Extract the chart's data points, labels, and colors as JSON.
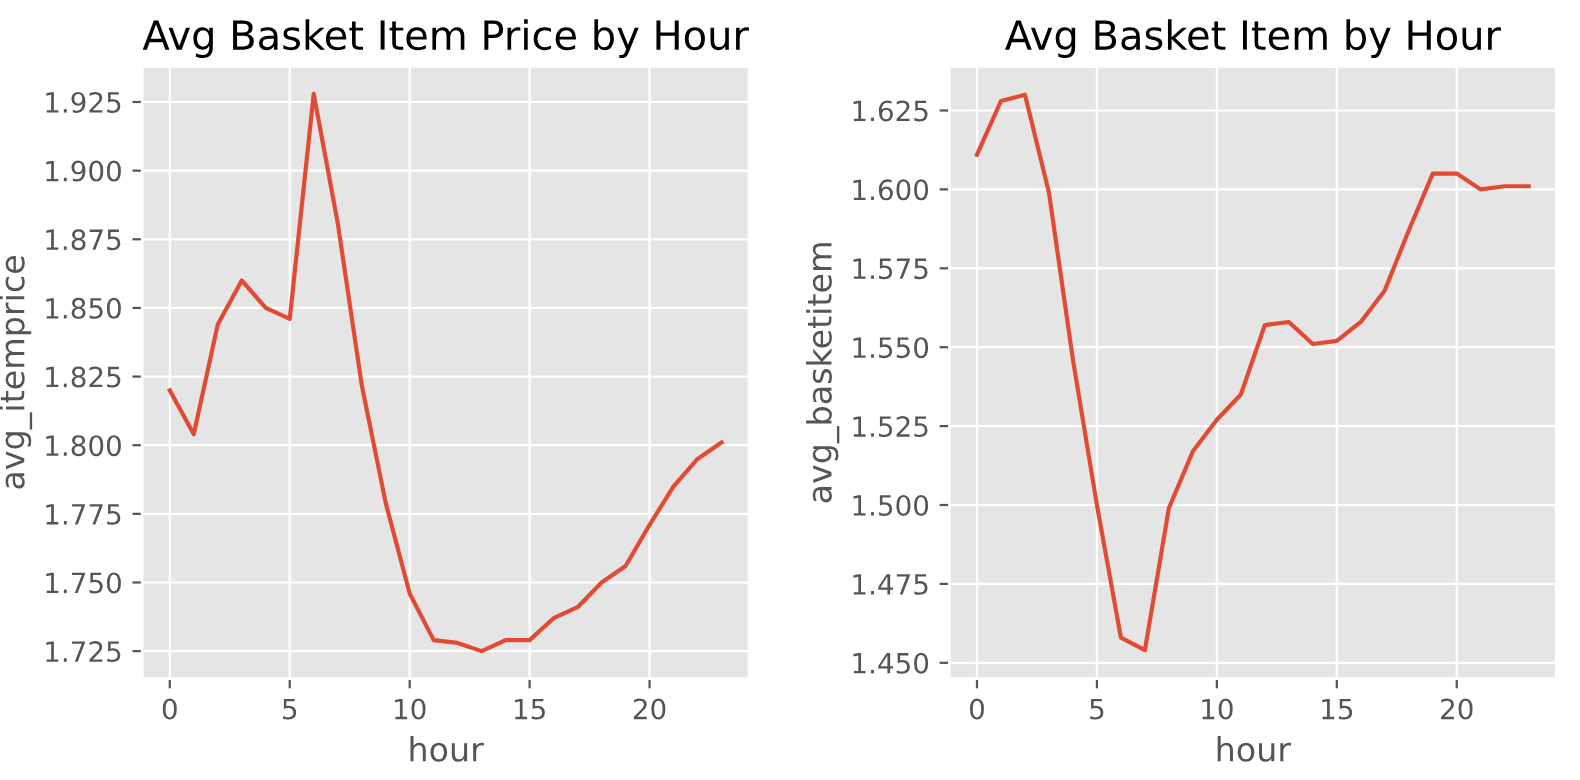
{
  "chart_data": [
    {
      "type": "line",
      "title": "Avg Basket Item Price by Hour",
      "xlabel": "hour",
      "ylabel": "avg_itemprice",
      "x": [
        0,
        1,
        2,
        3,
        4,
        5,
        6,
        7,
        8,
        9,
        10,
        11,
        12,
        13,
        14,
        15,
        16,
        17,
        18,
        19,
        20,
        21,
        22,
        23
      ],
      "series": [
        {
          "color": "#e24a33",
          "values": [
            1.82,
            1.804,
            1.844,
            1.86,
            1.85,
            1.846,
            1.928,
            1.881,
            1.822,
            1.779,
            1.746,
            1.729,
            1.728,
            1.725,
            1.729,
            1.729,
            1.737,
            1.741,
            1.75,
            1.756,
            1.771,
            1.785,
            1.795,
            1.801
          ]
        }
      ],
      "xlim": [
        -1.15,
        24.15
      ],
      "xticks": [
        0,
        5,
        10,
        15,
        20
      ],
      "ylim": [
        1.715,
        1.938
      ],
      "yticks": [
        {
          "value": 1.725,
          "label": "1.725"
        },
        {
          "value": 1.75,
          "label": "1.750"
        },
        {
          "value": 1.775,
          "label": "1.775"
        },
        {
          "value": 1.8,
          "label": "1.800"
        },
        {
          "value": 1.825,
          "label": "1.825"
        },
        {
          "value": 1.85,
          "label": "1.850"
        },
        {
          "value": 1.875,
          "label": "1.875"
        },
        {
          "value": 1.9,
          "label": "1.900"
        },
        {
          "value": 1.925,
          "label": "1.925"
        }
      ],
      "grid": true
    },
    {
      "type": "line",
      "title": "Avg Basket Item by Hour",
      "xlabel": "hour",
      "ylabel": "avg_basketitem",
      "x": [
        0,
        1,
        2,
        3,
        4,
        5,
        6,
        7,
        8,
        9,
        10,
        11,
        12,
        13,
        14,
        15,
        16,
        17,
        18,
        19,
        20,
        21,
        22,
        23
      ],
      "series": [
        {
          "color": "#e24a33",
          "values": [
            1.611,
            1.628,
            1.63,
            1.599,
            1.546,
            1.5,
            1.458,
            1.454,
            1.499,
            1.517,
            1.527,
            1.535,
            1.557,
            1.558,
            1.551,
            1.552,
            1.558,
            1.568,
            1.587,
            1.605,
            1.605,
            1.6,
            1.601,
            1.601
          ]
        }
      ],
      "xlim": [
        -1.15,
        24.15
      ],
      "xticks": [
        0,
        5,
        10,
        15,
        20
      ],
      "ylim": [
        1.445,
        1.639
      ],
      "yticks": [
        {
          "value": 1.45,
          "label": "1.450"
        },
        {
          "value": 1.475,
          "label": "1.475"
        },
        {
          "value": 1.5,
          "label": "1.500"
        },
        {
          "value": 1.525,
          "label": "1.525"
        },
        {
          "value": 1.55,
          "label": "1.550"
        },
        {
          "value": 1.575,
          "label": "1.575"
        },
        {
          "value": 1.6,
          "label": "1.600"
        },
        {
          "value": 1.625,
          "label": "1.625"
        }
      ],
      "grid": true
    }
  ]
}
